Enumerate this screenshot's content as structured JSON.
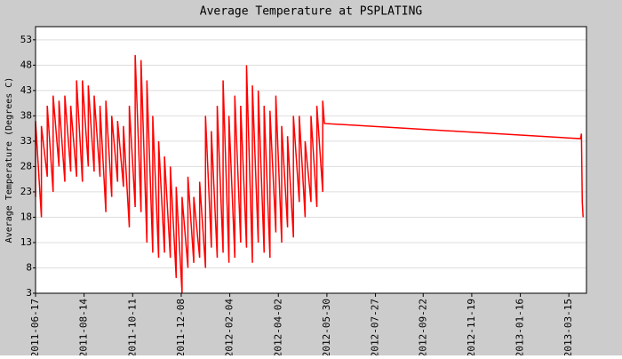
{
  "chart_data": {
    "type": "line",
    "title": "Average Temperature at PSPLATING",
    "y_label": "Average Temperature (Degrees C)",
    "x": [
      "2011-06-17",
      "2011-06-17",
      "2011-06-24",
      "2011-06-24",
      "2011-07-01",
      "2011-07-01",
      "2011-07-08",
      "2011-07-08",
      "2011-07-15",
      "2011-07-15",
      "2011-07-22",
      "2011-07-22",
      "2011-07-29",
      "2011-07-29",
      "2011-08-05",
      "2011-08-05",
      "2011-08-12",
      "2011-08-12",
      "2011-08-19",
      "2011-08-19",
      "2011-08-26",
      "2011-08-26",
      "2011-09-02",
      "2011-09-02",
      "2011-09-09",
      "2011-09-09",
      "2011-09-16",
      "2011-09-16",
      "2011-09-23",
      "2011-09-23",
      "2011-09-30",
      "2011-09-30",
      "2011-10-07",
      "2011-10-07",
      "2011-10-14",
      "2011-10-14",
      "2011-10-21",
      "2011-10-21",
      "2011-10-28",
      "2011-10-28",
      "2011-11-04",
      "2011-11-04",
      "2011-11-11",
      "2011-11-11",
      "2011-11-18",
      "2011-11-18",
      "2011-11-25",
      "2011-11-25",
      "2011-12-02",
      "2011-12-02",
      "2011-12-09",
      "2011-12-09",
      "2011-12-16",
      "2011-12-16",
      "2011-12-23",
      "2011-12-23",
      "2011-12-30",
      "2011-12-30",
      "2012-01-06",
      "2012-01-06",
      "2012-01-13",
      "2012-01-13",
      "2012-01-20",
      "2012-01-20",
      "2012-01-27",
      "2012-01-27",
      "2012-02-03",
      "2012-02-03",
      "2012-02-10",
      "2012-02-10",
      "2012-02-17",
      "2012-02-17",
      "2012-02-24",
      "2012-02-24",
      "2012-03-02",
      "2012-03-02",
      "2012-03-09",
      "2012-03-09",
      "2012-03-16",
      "2012-03-16",
      "2012-03-23",
      "2012-03-23",
      "2012-03-30",
      "2012-03-30",
      "2012-04-06",
      "2012-04-06",
      "2012-04-13",
      "2012-04-13",
      "2012-04-20",
      "2012-04-20",
      "2012-04-27",
      "2012-04-27",
      "2012-05-04",
      "2012-05-04",
      "2012-05-11",
      "2012-05-11",
      "2012-05-18",
      "2012-05-18",
      "2012-05-25",
      "2012-05-25",
      "2012-05-27",
      "2013-03-29",
      "2013-03-30",
      "2013-03-31",
      "2013-04-01"
    ],
    "series": [
      {
        "name": "Average Temperature",
        "color": "#ff0000",
        "values": [
          22,
          37,
          18,
          36,
          26,
          40,
          23,
          42,
          28,
          41,
          25,
          42,
          27,
          40,
          26,
          45,
          25,
          45,
          28,
          44,
          27,
          42,
          26,
          40,
          19,
          41,
          22,
          38,
          25,
          37,
          24,
          36,
          16,
          40,
          20,
          50,
          19,
          49,
          13,
          45,
          11,
          38,
          10,
          33,
          11,
          30,
          10,
          28,
          6,
          24,
          3,
          22,
          8,
          26,
          9,
          22,
          10,
          25,
          8,
          38,
          12,
          35,
          10,
          40,
          11,
          45,
          9,
          38,
          10,
          42,
          13,
          40,
          12,
          48,
          9,
          44,
          13,
          43,
          11,
          40,
          10,
          39,
          15,
          42,
          13,
          36,
          16,
          34,
          14,
          38,
          21,
          38,
          18,
          33,
          21,
          38,
          20,
          40,
          23,
          41,
          36.5,
          33.5,
          34.5,
          21,
          18
        ]
      }
    ],
    "xlim": [
      "2011-06-17",
      "2013-04-05"
    ],
    "xticks": [
      "2011-06-17",
      "2011-08-14",
      "2011-10-11",
      "2011-12-08",
      "2012-02-04",
      "2012-04-02",
      "2012-05-30",
      "2012-07-27",
      "2012-09-22",
      "2012-11-19",
      "2013-01-16",
      "2013-03-15"
    ],
    "ylim": [
      3,
      55.6
    ],
    "yticks": [
      3,
      8,
      13,
      18,
      23,
      28,
      33,
      38,
      43,
      48,
      53
    ],
    "grid": true
  }
}
